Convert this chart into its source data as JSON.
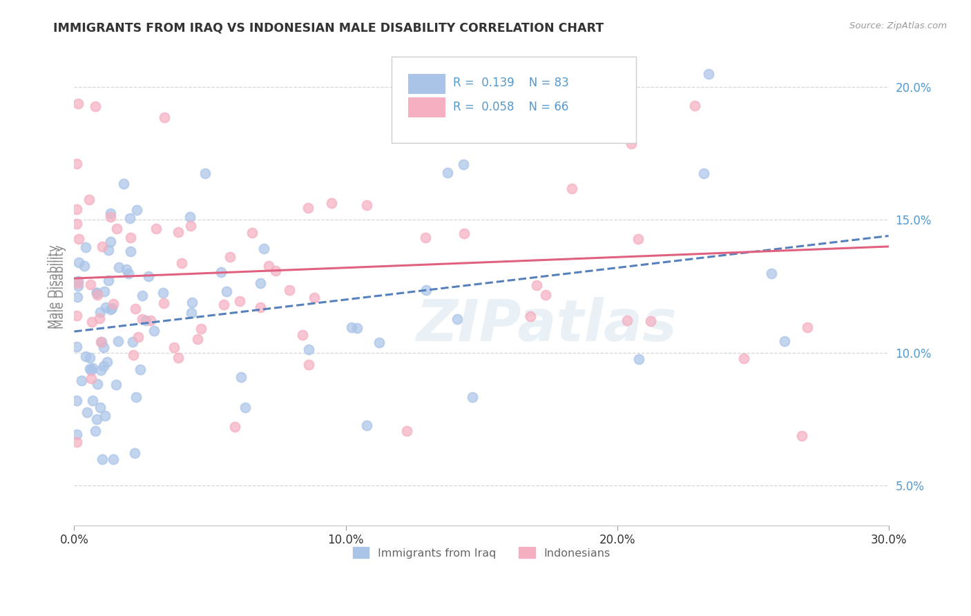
{
  "title": "IMMIGRANTS FROM IRAQ VS INDONESIAN MALE DISABILITY CORRELATION CHART",
  "source": "Source: ZipAtlas.com",
  "ylabel": "Male Disability",
  "xlim": [
    0.0,
    0.3
  ],
  "ylim": [
    0.035,
    0.215
  ],
  "series1_color": "#aac4e8",
  "series2_color": "#f5afc0",
  "series1_line_color": "#5580bb",
  "series2_line_color": "#e06080",
  "series1_label": "Immigrants from Iraq",
  "series2_label": "Indonesians",
  "series1_R": "0.139",
  "series1_N": "83",
  "series2_R": "0.058",
  "series2_N": "66",
  "watermark": "ZIPatlas",
  "background_color": "#ffffff",
  "grid_color": "#cccccc",
  "title_color": "#333333",
  "legend_text_color": "#5599cc",
  "ytick_values": [
    0.05,
    0.1,
    0.15,
    0.2
  ],
  "xtick_values": [
    0.0,
    0.1,
    0.2,
    0.3
  ],
  "trend1_intercept": 0.108,
  "trend1_slope": 0.12,
  "trend2_intercept": 0.128,
  "trend2_slope": 0.04
}
